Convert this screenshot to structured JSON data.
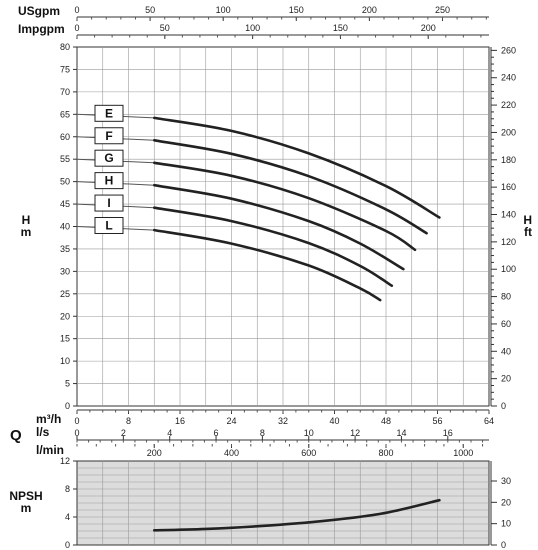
{
  "chart_data": [
    {
      "type": "line",
      "title": "",
      "x_axes": [
        {
          "unit": "USgpm",
          "ticks": [
            0,
            50,
            100,
            150,
            200,
            250
          ],
          "position": "top"
        },
        {
          "unit": "Impgpm",
          "ticks": [
            0,
            50,
            100,
            150,
            200
          ],
          "position": "top"
        }
      ],
      "xlim_m3h": [
        0,
        64
      ],
      "ylabel_left": "H\nm",
      "ylabel_right": "H\nft",
      "ylim": [
        0,
        80
      ],
      "yticks_left": [
        0,
        5,
        10,
        15,
        20,
        25,
        30,
        35,
        40,
        45,
        50,
        55,
        60,
        65,
        70,
        75,
        80
      ],
      "yticks_right": [
        0,
        20,
        40,
        60,
        80,
        100,
        120,
        140,
        160,
        180,
        200,
        220,
        240,
        260
      ],
      "grid": true,
      "series": [
        {
          "name": "E",
          "x": [
            0,
            12,
            24,
            36,
            48,
            56.3
          ],
          "y": [
            65,
            64.2,
            61.3,
            56.3,
            49,
            42
          ]
        },
        {
          "name": "F",
          "x": [
            0,
            12,
            24,
            36,
            48,
            54.3
          ],
          "y": [
            60,
            59.2,
            56.2,
            51.2,
            43.8,
            38.5
          ]
        },
        {
          "name": "G",
          "x": [
            0,
            12,
            24,
            36,
            48,
            52.5
          ],
          "y": [
            55,
            54.2,
            51.3,
            46.3,
            39,
            34.8
          ]
        },
        {
          "name": "H",
          "x": [
            0,
            12,
            24,
            36,
            44,
            50.7
          ],
          "y": [
            50,
            49.2,
            46.2,
            41.2,
            36.2,
            30.5
          ]
        },
        {
          "name": "I",
          "x": [
            0,
            12,
            24,
            36,
            44,
            48.9
          ],
          "y": [
            45,
            44.2,
            41.2,
            36.3,
            31.2,
            26.8
          ]
        },
        {
          "name": "L",
          "x": [
            0,
            12,
            24,
            36,
            44,
            47.1
          ],
          "y": [
            40,
            39.2,
            36.2,
            31.3,
            26.2,
            23.6
          ]
        }
      ]
    },
    {
      "type": "line",
      "title": "",
      "x_axes": [
        {
          "unit": "m³/h",
          "ticks": [
            0,
            8,
            16,
            24,
            32,
            40,
            48,
            56,
            64
          ]
        },
        {
          "unit": "l/s",
          "ticks": [
            0,
            2,
            4,
            6,
            8,
            10,
            12,
            14,
            16
          ]
        },
        {
          "unit": "l/min",
          "ticks": [
            200,
            400,
            600,
            800,
            1000
          ]
        }
      ],
      "q_label": "Q",
      "xlim_m3h": [
        0,
        64
      ],
      "ylabel_left": "NPSH\nm",
      "ylim": [
        0,
        12
      ],
      "yticks_left": [
        0,
        4,
        8,
        12
      ],
      "yticks_right": [
        0,
        10,
        20,
        30
      ],
      "grid": true,
      "series": [
        {
          "name": "",
          "x": [
            12,
            20,
            30,
            40,
            48,
            56.3
          ],
          "y": [
            2.1,
            2.3,
            2.8,
            3.6,
            4.6,
            6.4
          ]
        }
      ]
    }
  ]
}
